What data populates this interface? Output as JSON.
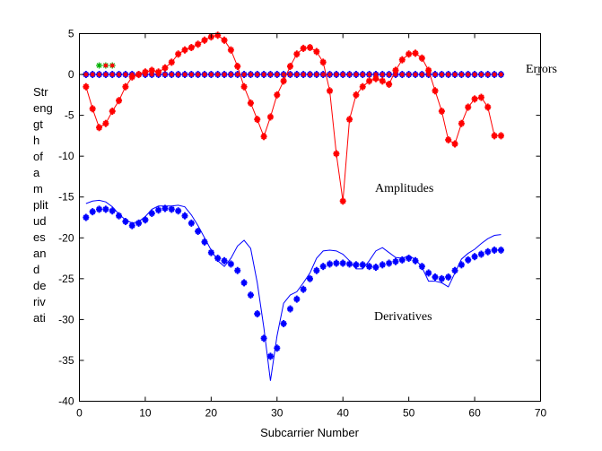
{
  "chart_data": {
    "type": "line",
    "title": "",
    "xlabel": "Subcarrier Number",
    "ylabel_lines": [
      "Str",
      "eng",
      "gt",
      "h",
      "of",
      "a",
      "m",
      "plit",
      "ud",
      "es",
      "an",
      "d",
      "de",
      "riv",
      "ati"
    ],
    "xlim": [
      0,
      70
    ],
    "ylim": [
      -40,
      5
    ],
    "xticks": [
      0,
      10,
      20,
      30,
      40,
      50,
      60,
      70
    ],
    "yticks": [
      5,
      0,
      -5,
      -10,
      -15,
      -20,
      -25,
      -30,
      -35,
      -40
    ],
    "grid": false,
    "annotations": [
      "Errors",
      "Amplitudes",
      "Derivatives"
    ],
    "x": [
      1,
      2,
      3,
      4,
      5,
      6,
      7,
      8,
      9,
      10,
      11,
      12,
      13,
      14,
      15,
      16,
      17,
      18,
      19,
      20,
      21,
      22,
      23,
      24,
      25,
      26,
      27,
      28,
      29,
      30,
      31,
      32,
      33,
      34,
      35,
      36,
      37,
      38,
      39,
      40,
      41,
      42,
      43,
      44,
      45,
      46,
      47,
      48,
      49,
      50,
      51,
      52,
      53,
      54,
      55,
      56,
      57,
      58,
      59,
      60,
      61,
      62,
      63,
      64
    ],
    "series": [
      {
        "role": "amplitudes",
        "color": "#ff0000",
        "style": "line-markers",
        "values": [
          -1.5,
          -4.2,
          -6.5,
          -6.0,
          -4.5,
          -3.2,
          -1.5,
          -0.3,
          0.0,
          0.3,
          0.5,
          0.3,
          0.8,
          1.5,
          2.5,
          3.0,
          3.3,
          3.7,
          4.2,
          4.6,
          4.8,
          4.2,
          3.0,
          1.0,
          -1.5,
          -3.5,
          -5.5,
          -7.6,
          -5.2,
          -2.5,
          -0.8,
          1.0,
          2.5,
          3.2,
          3.3,
          2.8,
          1.5,
          -2.0,
          -9.7,
          -15.5,
          -5.5,
          -2.5,
          -1.5,
          -0.8,
          -0.5,
          -0.8,
          -1.2,
          0.5,
          1.8,
          2.5,
          2.6,
          2.0,
          0.5,
          -2.0,
          -4.5,
          -8.0,
          -8.5,
          -6.0,
          -4.0,
          -3.0,
          -2.8,
          -4.0,
          -7.5,
          -7.5
        ]
      },
      {
        "role": "derivatives-markers",
        "color": "#0000ff",
        "style": "markers",
        "values": [
          -17.5,
          -16.8,
          -16.5,
          -16.5,
          -16.7,
          -17.3,
          -18.0,
          -18.5,
          -18.2,
          -17.8,
          -17.0,
          -16.6,
          -16.4,
          -16.5,
          -16.7,
          -17.3,
          -18.2,
          -19.2,
          -20.5,
          -21.8,
          -22.5,
          -22.8,
          -23.2,
          -24.0,
          -25.5,
          -27.0,
          -29.3,
          -32.3,
          -34.5,
          -33.5,
          -30.5,
          -28.7,
          -27.5,
          -26.3,
          -25.0,
          -24.0,
          -23.5,
          -23.2,
          -23.1,
          -23.1,
          -23.2,
          -23.3,
          -23.3,
          -23.5,
          -23.6,
          -23.3,
          -23.1,
          -22.9,
          -22.7,
          -22.5,
          -22.8,
          -23.5,
          -24.3,
          -24.8,
          -25.0,
          -24.8,
          -24.0,
          -23.3,
          -22.7,
          -22.3,
          -22.0,
          -21.7,
          -21.5,
          -21.5
        ]
      },
      {
        "role": "derivatives-line",
        "color": "#0000ff",
        "style": "line",
        "values": [
          -15.8,
          -15.5,
          -15.4,
          -15.6,
          -16.2,
          -17.1,
          -17.8,
          -18.2,
          -18.0,
          -17.4,
          -16.5,
          -16.1,
          -16.1,
          -16.1,
          -16.0,
          -16.2,
          -17.2,
          -18.5,
          -20.0,
          -21.5,
          -22.8,
          -23.5,
          -22.5,
          -21.0,
          -20.3,
          -21.3,
          -25.5,
          -31.0,
          -37.5,
          -32.0,
          -28.0,
          -27.0,
          -26.6,
          -25.5,
          -24.3,
          -22.5,
          -21.6,
          -21.5,
          -21.6,
          -22.0,
          -22.8,
          -23.8,
          -23.8,
          -22.8,
          -21.6,
          -21.2,
          -21.8,
          -22.4,
          -22.5,
          -22.2,
          -22.6,
          -23.6,
          -25.3,
          -25.3,
          -25.5,
          -26.0,
          -24.3,
          -22.6,
          -21.9,
          -21.4,
          -20.7,
          -20.1,
          -19.7,
          -19.6
        ]
      },
      {
        "role": "errors-red",
        "color": "#ff0000",
        "style": "markers",
        "values": [
          0,
          0,
          0,
          0,
          0,
          0,
          0,
          0,
          0,
          0,
          0,
          0,
          0,
          0,
          0,
          0,
          0,
          0,
          0,
          0,
          0,
          0,
          0,
          0,
          0,
          0,
          0,
          0,
          0,
          0,
          0,
          0,
          0,
          0,
          0,
          0,
          0,
          0,
          0,
          0,
          0,
          0,
          0,
          0,
          0,
          0,
          0,
          0,
          0,
          0,
          0,
          0,
          0,
          0,
          0,
          0,
          0,
          0,
          0,
          0,
          0,
          0,
          0,
          0
        ]
      },
      {
        "role": "errors-blue",
        "color": "#0000ff",
        "style": "markers",
        "values": [
          0,
          0,
          0,
          0,
          0,
          0,
          0,
          0,
          0,
          0,
          0,
          0,
          0,
          0,
          0,
          0,
          0,
          0,
          0,
          0,
          0,
          0,
          0,
          0,
          0,
          0,
          0,
          0,
          0,
          0,
          0,
          0,
          0,
          0,
          0,
          0,
          0,
          0,
          0,
          0,
          0,
          0,
          0,
          0,
          0,
          0,
          0,
          0,
          0,
          0,
          0,
          0,
          0,
          0,
          0,
          0,
          0,
          0,
          0,
          0,
          0,
          0,
          0,
          0
        ]
      },
      {
        "role": "errors-outliers",
        "color": "#00b000",
        "style": "markers",
        "x": [
          3,
          4,
          5
        ],
        "values": [
          1.1,
          1.1,
          1.1
        ]
      },
      {
        "role": "errors-outliers-red",
        "color": "#ff0000",
        "style": "markers",
        "x": [
          4,
          5
        ],
        "values": [
          1.1,
          1.1
        ]
      }
    ]
  }
}
